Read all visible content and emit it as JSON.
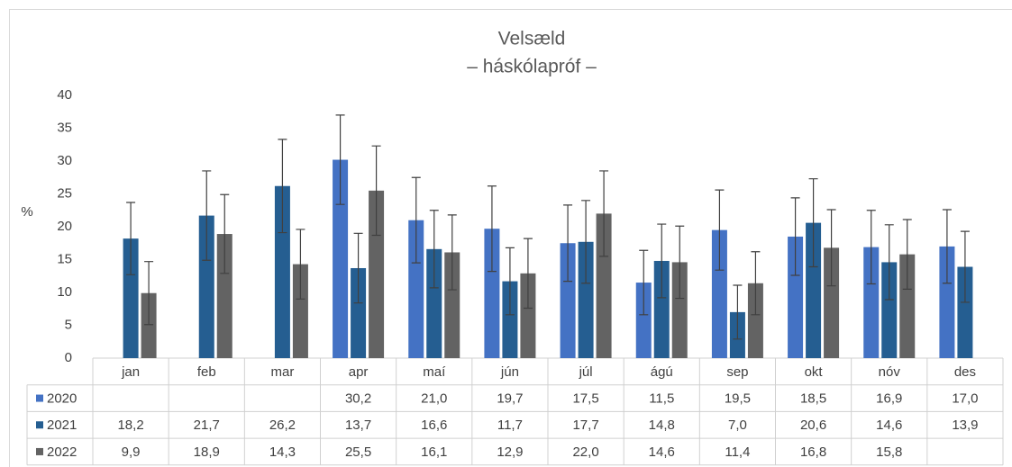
{
  "chart_data": {
    "type": "bar",
    "title": "Velsæld",
    "subtitle": "– háskólapróf –",
    "y_label": "%",
    "categories": [
      "jan",
      "feb",
      "mar",
      "apr",
      "maí",
      "jún",
      "júl",
      "ágú",
      "sep",
      "okt",
      "nóv",
      "des"
    ],
    "ylim": [
      0,
      40
    ],
    "yticks": [
      0,
      5,
      10,
      15,
      20,
      25,
      30,
      35,
      40
    ],
    "grid": false,
    "series": [
      {
        "name": "2020",
        "color": "#4472c4",
        "values": [
          null,
          null,
          null,
          30.2,
          21.0,
          19.7,
          17.5,
          11.5,
          19.5,
          18.5,
          16.9,
          17.0
        ],
        "value_labels": [
          null,
          null,
          null,
          "30,2",
          "21,0",
          "19,7",
          "17,5",
          "11,5",
          "19,5",
          "18,5",
          "16,9",
          "17,0"
        ],
        "errors": [
          null,
          null,
          null,
          6.8,
          6.5,
          6.5,
          5.8,
          4.9,
          6.1,
          5.9,
          5.6,
          5.6
        ]
      },
      {
        "name": "2021",
        "color": "#255e91",
        "values": [
          18.2,
          21.7,
          26.2,
          13.7,
          16.6,
          11.7,
          17.7,
          14.8,
          7.0,
          20.6,
          14.6,
          13.9
        ],
        "value_labels": [
          "18,2",
          "21,7",
          "26,2",
          "13,7",
          "16,6",
          "11,7",
          "17,7",
          "14,8",
          "7,0",
          "20,6",
          "14,6",
          "13,9"
        ],
        "errors": [
          5.5,
          6.8,
          7.1,
          5.3,
          5.9,
          5.1,
          6.3,
          5.6,
          4.1,
          6.7,
          5.7,
          5.4
        ]
      },
      {
        "name": "2022",
        "color": "#636363",
        "values": [
          9.9,
          18.9,
          14.3,
          25.5,
          16.1,
          12.9,
          22.0,
          14.6,
          11.4,
          16.8,
          15.8,
          null
        ],
        "value_labels": [
          "9,9",
          "18,9",
          "14,3",
          "25,5",
          "16,1",
          "12,9",
          "22,0",
          "14,6",
          "11,4",
          "16,8",
          "15,8",
          null
        ],
        "errors": [
          4.8,
          6.0,
          5.3,
          6.8,
          5.7,
          5.3,
          6.5,
          5.5,
          4.8,
          5.8,
          5.3,
          null
        ]
      }
    ]
  }
}
